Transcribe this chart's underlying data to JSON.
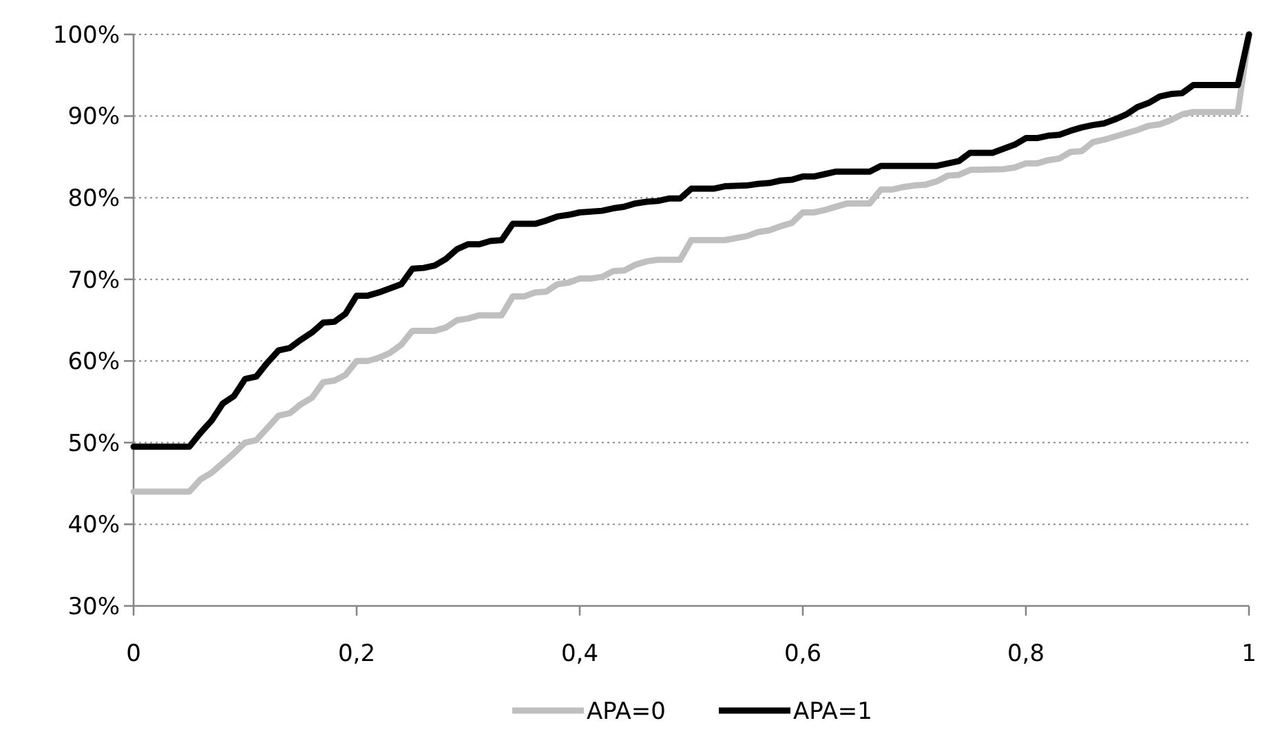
{
  "chart_data": {
    "type": "line",
    "xlim": [
      0,
      1
    ],
    "xticks": [
      0,
      {
        "value": 0.2,
        "label": "0,2"
      },
      {
        "value": 0.4,
        "label": "0,4"
      },
      {
        "value": 0.6,
        "label": "0,6"
      },
      {
        "value": 0.8,
        "label": "0,8"
      },
      1
    ],
    "ylim": [
      30,
      100
    ],
    "yticks": [
      {
        "value": 30,
        "label": "30%"
      },
      {
        "value": 40,
        "label": "40%"
      },
      {
        "value": 50,
        "label": "50%"
      },
      {
        "value": 60,
        "label": "60%"
      },
      {
        "value": 70,
        "label": "70%"
      },
      {
        "value": 80,
        "label": "80%"
      },
      {
        "value": 90,
        "label": "90%"
      },
      {
        "value": 100,
        "label": "100%"
      }
    ],
    "grid": "y",
    "legend": "bottom",
    "marker": "none",
    "line_style": "solid",
    "series": [
      {
        "name": "APA=0",
        "color": "#bfbfbf",
        "x": [
          0,
          0.05,
          0.06,
          0.07,
          0.08,
          0.09,
          0.1,
          0.11,
          0.12,
          0.13,
          0.14,
          0.15,
          0.16,
          0.17,
          0.18,
          0.19,
          0.2,
          0.21,
          0.22,
          0.23,
          0.24,
          0.25,
          0.27,
          0.28,
          0.29,
          0.3,
          0.31,
          0.33,
          0.34,
          0.35,
          0.36,
          0.37,
          0.38,
          0.39,
          0.4,
          0.41,
          0.42,
          0.43,
          0.44,
          0.45,
          0.46,
          0.47,
          0.49,
          0.5,
          0.53,
          0.55,
          0.56,
          0.57,
          0.58,
          0.59,
          0.6,
          0.61,
          0.62,
          0.63,
          0.64,
          0.66,
          0.67,
          0.68,
          0.69,
          0.7,
          0.71,
          0.72,
          0.73,
          0.74,
          0.75,
          0.78,
          0.79,
          0.8,
          0.81,
          0.82,
          0.83,
          0.84,
          0.85,
          0.86,
          0.87,
          0.88,
          0.89,
          0.9,
          0.91,
          0.92,
          0.93,
          0.94,
          0.95,
          0.99,
          1
        ],
        "values": [
          44,
          44,
          45.5,
          46.3,
          47.5,
          48.7,
          50,
          50.3,
          51.8,
          53.3,
          53.6,
          54.7,
          55.5,
          57.4,
          57.6,
          58.3,
          60,
          60,
          60.4,
          61,
          62,
          63.7,
          63.7,
          64.1,
          65,
          65.2,
          65.6,
          65.6,
          67.9,
          67.9,
          68.4,
          68.5,
          69.4,
          69.6,
          70.1,
          70.1,
          70.3,
          71,
          71.1,
          71.8,
          72.2,
          72.4,
          72.4,
          74.8,
          74.8,
          75.3,
          75.8,
          76,
          76.5,
          76.9,
          78.2,
          78.2,
          78.5,
          78.9,
          79.3,
          79.3,
          81,
          81,
          81.3,
          81.5,
          81.6,
          82,
          82.7,
          82.8,
          83.4,
          83.5,
          83.7,
          84.2,
          84.2,
          84.6,
          84.8,
          85.6,
          85.7,
          86.8,
          87.1,
          87.5,
          87.9,
          88.3,
          88.8,
          89,
          89.5,
          90.2,
          90.5,
          90.5,
          100
        ]
      },
      {
        "name": "APA=1",
        "color": "#000000",
        "x": [
          0,
          0.05,
          0.06,
          0.07,
          0.08,
          0.09,
          0.1,
          0.11,
          0.12,
          0.13,
          0.14,
          0.15,
          0.16,
          0.17,
          0.18,
          0.19,
          0.2,
          0.21,
          0.22,
          0.23,
          0.24,
          0.25,
          0.26,
          0.27,
          0.28,
          0.29,
          0.3,
          0.31,
          0.32,
          0.33,
          0.34,
          0.36,
          0.37,
          0.38,
          0.39,
          0.4,
          0.42,
          0.43,
          0.44,
          0.45,
          0.46,
          0.47,
          0.48,
          0.49,
          0.5,
          0.52,
          0.53,
          0.55,
          0.56,
          0.57,
          0.58,
          0.59,
          0.6,
          0.61,
          0.62,
          0.63,
          0.66,
          0.67,
          0.72,
          0.73,
          0.74,
          0.75,
          0.77,
          0.78,
          0.79,
          0.8,
          0.81,
          0.82,
          0.83,
          0.84,
          0.85,
          0.86,
          0.87,
          0.88,
          0.89,
          0.9,
          0.91,
          0.92,
          0.93,
          0.94,
          0.95,
          0.99,
          1
        ],
        "values": [
          49.5,
          49.5,
          51.2,
          52.7,
          54.8,
          55.7,
          57.8,
          58.1,
          59.8,
          61.3,
          61.6,
          62.6,
          63.5,
          64.7,
          64.8,
          65.8,
          68,
          68,
          68.4,
          68.9,
          69.4,
          71.3,
          71.4,
          71.7,
          72.5,
          73.7,
          74.3,
          74.3,
          74.7,
          74.8,
          76.8,
          76.8,
          77.2,
          77.7,
          77.9,
          78.2,
          78.4,
          78.7,
          78.9,
          79.3,
          79.5,
          79.6,
          79.9,
          79.9,
          81.1,
          81.1,
          81.4,
          81.5,
          81.7,
          81.8,
          82.1,
          82.2,
          82.6,
          82.6,
          82.9,
          83.2,
          83.2,
          83.9,
          83.9,
          84.2,
          84.5,
          85.5,
          85.5,
          86,
          86.5,
          87.3,
          87.3,
          87.6,
          87.7,
          88.2,
          88.6,
          88.9,
          89.1,
          89.6,
          90.2,
          91.1,
          91.6,
          92.4,
          92.7,
          92.8,
          93.8,
          93.8,
          100
        ]
      }
    ]
  }
}
